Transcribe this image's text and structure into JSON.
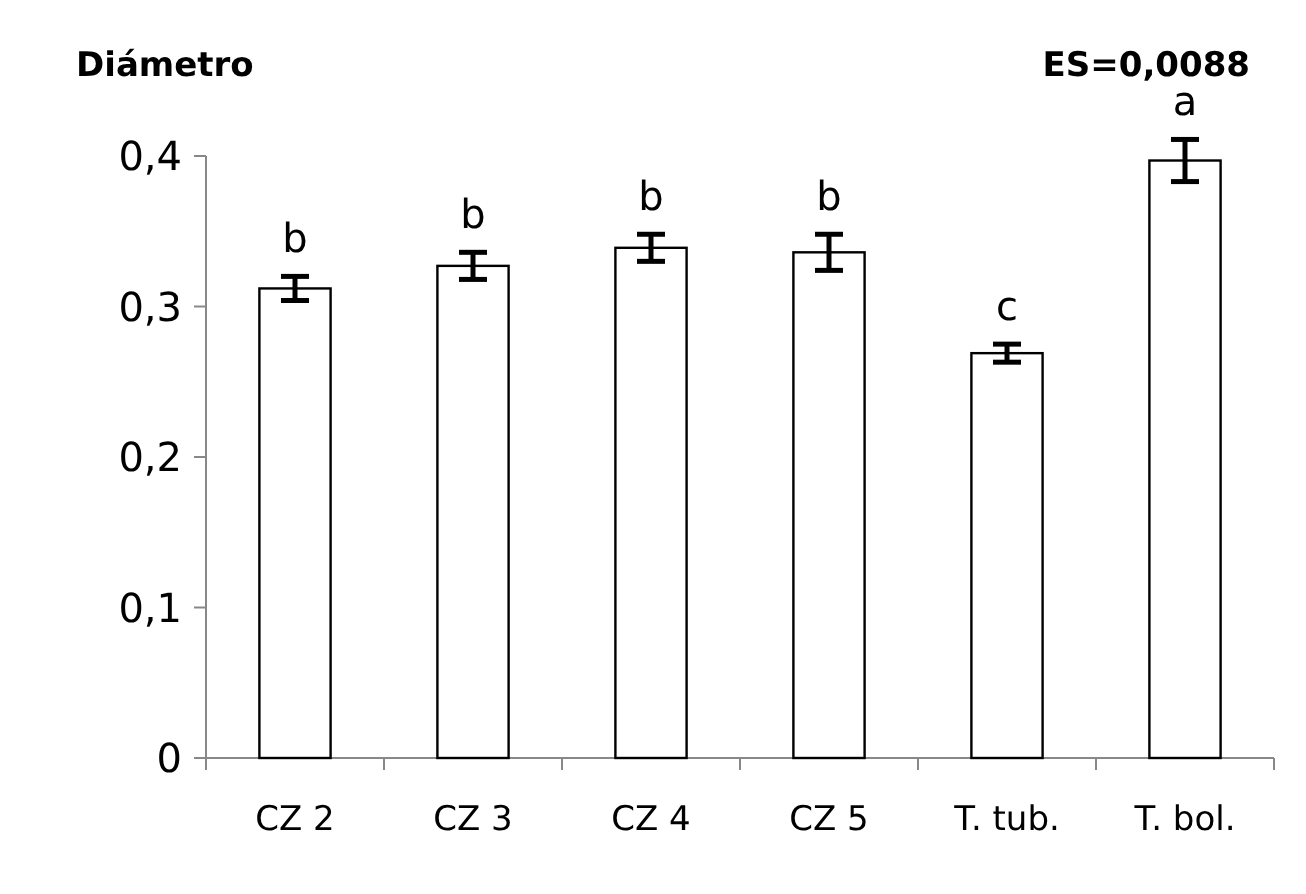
{
  "chart_data": {
    "type": "bar",
    "title": "Diámetro",
    "categories": [
      "CZ 2",
      "CZ 3",
      "CZ 4",
      "CZ 5",
      "T. tub.",
      "T. bol."
    ],
    "values": [
      0.312,
      0.327,
      0.339,
      0.336,
      0.269,
      0.397
    ],
    "errors": [
      0.008,
      0.009,
      0.009,
      0.012,
      0.006,
      0.014
    ],
    "color": "#ffffff",
    "ylim": [
      0,
      0.4
    ],
    "yticks": [
      0,
      {
        "value": 0.1,
        "label": "0,1"
      },
      {
        "value": 0.2,
        "label": "0,2"
      },
      {
        "value": 0.3,
        "label": "0,3"
      },
      {
        "value": 0.4,
        "label": "0,4"
      }
    ],
    "annotations": [
      "ES=0,0088",
      {
        "text": "b",
        "x": "CZ 2",
        "y": 0.312
      },
      {
        "text": "b",
        "x": "CZ 3",
        "y": 0.327
      },
      {
        "text": "b",
        "x": "CZ 4",
        "y": 0.339
      },
      {
        "text": "b",
        "x": "CZ 5",
        "y": 0.336
      },
      {
        "text": "c",
        "x": "T. tub.",
        "y": 0.269
      },
      {
        "text": "a",
        "x": "T. bol.",
        "y": 0.397
      }
    ],
    "grid": false
  }
}
